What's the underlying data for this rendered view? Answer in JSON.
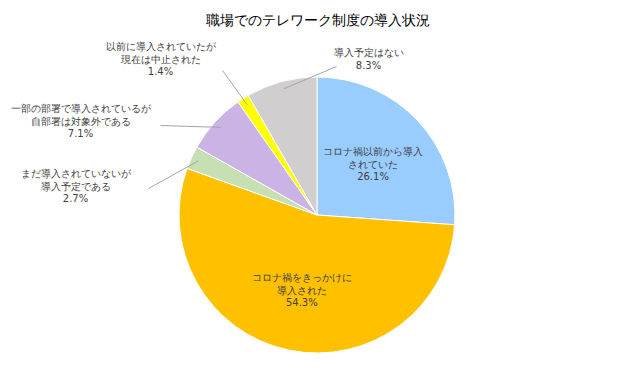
{
  "chart_data": {
    "type": "pie",
    "title": "職場でのテレワーク制度の導入状況",
    "categories": [
      "コロナ禍以前から導入\nされていた",
      "コロナ禍をきっかけに\n導入された",
      "まだ導入されていないが\n導入予定である",
      "一部の部署で導入されているが\n自部署は対象外である",
      "以前に導入されていたが\n現在は中止された",
      "導入予定はない"
    ],
    "values": [
      26.1,
      54.3,
      2.7,
      7.1,
      1.4,
      8.3
    ],
    "value_labels": [
      "26.1%",
      "54.3%",
      "2.7%",
      "7.1%",
      "1.4%",
      "8.3%"
    ],
    "colors": [
      "#99ccff",
      "#ffc000",
      "#c6e0b4",
      "#ccb3e6",
      "#ffff00",
      "#d0cece"
    ],
    "data_labels": true
  }
}
